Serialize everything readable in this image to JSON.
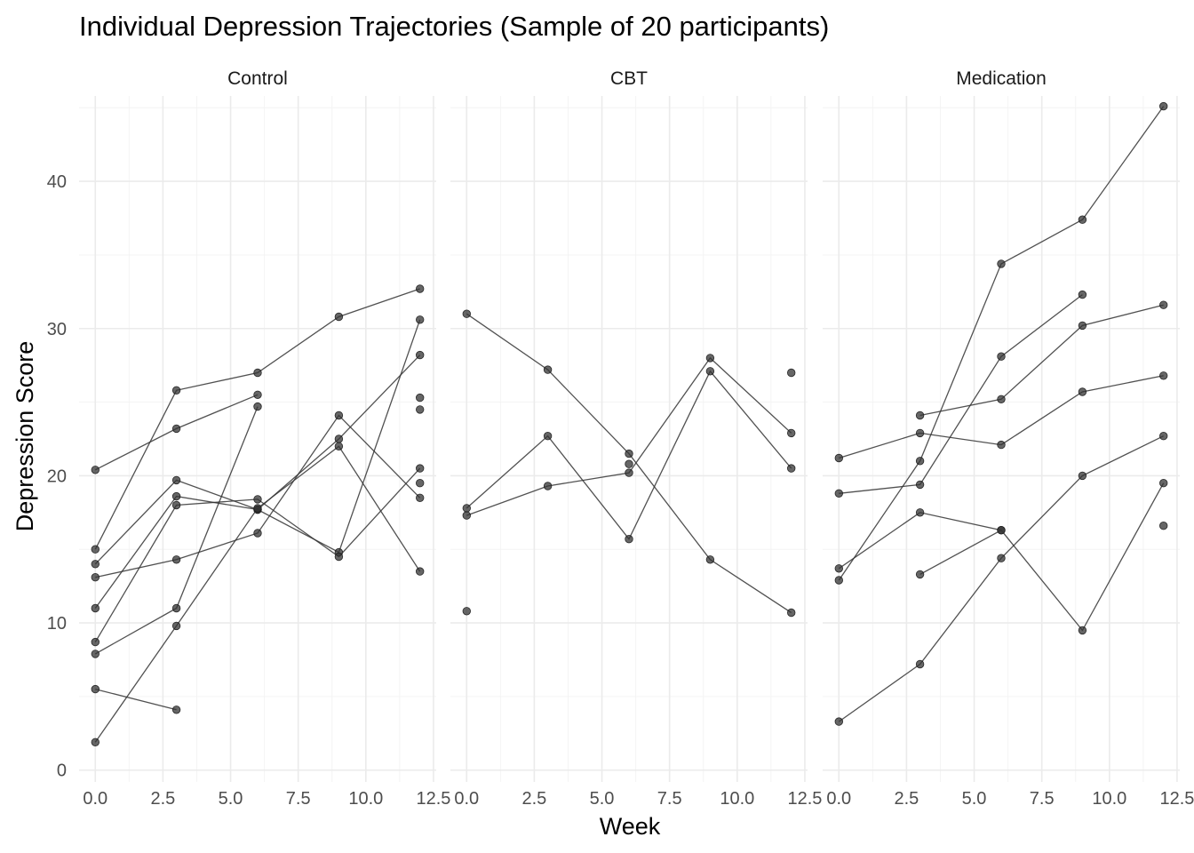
{
  "chart_data": {
    "type": "line",
    "title": "Individual Depression Trajectories (Sample of 20 participants)",
    "xlabel": "Week",
    "ylabel": "Depression Score",
    "xlim": [
      -0.6,
      12.6
    ],
    "ylim": [
      -0.8,
      45.8
    ],
    "x_ticks": [
      0,
      2.5,
      5,
      7.5,
      10,
      12.5
    ],
    "x_tick_labels": [
      "0.0",
      "2.5",
      "5.0",
      "7.5",
      "10.0",
      "12.5"
    ],
    "y_ticks": [
      0,
      10,
      20,
      30,
      40
    ],
    "y_tick_labels": [
      "0",
      "10",
      "20",
      "30",
      "40"
    ],
    "grid": true,
    "legend": "none",
    "line_color": "#333333",
    "facets": [
      {
        "name": "Control",
        "series": [
          {
            "x": [
              0,
              3,
              6,
              9,
              12
            ],
            "y": [
              20.4,
              23.2,
              25.5,
              null,
              null
            ]
          },
          {
            "x": [
              0,
              3,
              6,
              9,
              12
            ],
            "y": [
              15.0,
              25.8,
              27.0,
              30.8,
              32.7
            ]
          },
          {
            "x": [
              0,
              3,
              6,
              9,
              12
            ],
            "y": [
              14.0,
              19.7,
              17.7,
              22.5,
              28.2
            ]
          },
          {
            "x": [
              0,
              3,
              6,
              9,
              12
            ],
            "y": [
              13.1,
              14.3,
              16.1,
              24.1,
              18.5
            ]
          },
          {
            "x": [
              0,
              3,
              6,
              9,
              12
            ],
            "y": [
              11.0,
              18.6,
              17.7,
              14.8,
              30.6
            ]
          },
          {
            "x": [
              0,
              3,
              6,
              9,
              12
            ],
            "y": [
              8.7,
              18.0,
              18.4,
              14.5,
              20.5
            ]
          },
          {
            "x": [
              0,
              3,
              6,
              9,
              12
            ],
            "y": [
              7.9,
              11.0,
              24.7,
              null,
              25.3
            ]
          },
          {
            "x": [
              0,
              3,
              6,
              9,
              12
            ],
            "y": [
              5.5,
              4.1,
              null,
              null,
              null
            ]
          },
          {
            "x": [
              0,
              3,
              6,
              9,
              12
            ],
            "y": [
              1.9,
              9.8,
              17.8,
              22.0,
              13.5
            ]
          },
          {
            "x": [
              12
            ],
            "y": [
              24.5
            ]
          },
          {
            "x": [
              12
            ],
            "y": [
              19.5
            ]
          }
        ]
      },
      {
        "name": "CBT",
        "series": [
          {
            "x": [
              0,
              3,
              6,
              9,
              12
            ],
            "y": [
              31.0,
              27.2,
              21.5,
              14.3,
              10.7
            ]
          },
          {
            "x": [
              0,
              3,
              6,
              9,
              12
            ],
            "y": [
              17.8,
              22.7,
              15.7,
              27.1,
              20.5
            ]
          },
          {
            "x": [
              0,
              3,
              6,
              9,
              12
            ],
            "y": [
              17.3,
              19.3,
              20.2,
              28.0,
              22.9
            ]
          },
          {
            "x": [
              0
            ],
            "y": [
              10.8
            ]
          },
          {
            "x": [
              6
            ],
            "y": [
              20.8
            ]
          },
          {
            "x": [
              12
            ],
            "y": [
              27.0
            ]
          }
        ]
      },
      {
        "name": "Medication",
        "series": [
          {
            "x": [
              0,
              3,
              6,
              9,
              12
            ],
            "y": [
              21.2,
              22.9,
              22.1,
              25.7,
              26.8
            ]
          },
          {
            "x": [
              0,
              3,
              6,
              9,
              12
            ],
            "y": [
              18.8,
              19.4,
              28.1,
              32.3,
              null
            ]
          },
          {
            "x": [
              0,
              3,
              6,
              9,
              12
            ],
            "y": [
              13.7,
              17.5,
              16.3,
              9.5,
              19.5
            ]
          },
          {
            "x": [
              0,
              3,
              6,
              9,
              12
            ],
            "y": [
              12.9,
              21.0,
              34.4,
              37.4,
              45.1
            ]
          },
          {
            "x": [
              0,
              3,
              6,
              9,
              12
            ],
            "y": [
              3.3,
              7.2,
              14.4,
              20.0,
              22.7
            ]
          },
          {
            "x": [
              3,
              6,
              9,
              12
            ],
            "y": [
              24.1,
              25.2,
              30.2,
              31.6
            ]
          },
          {
            "x": [
              3,
              6
            ],
            "y": [
              13.3,
              16.3
            ]
          },
          {
            "x": [
              12
            ],
            "y": [
              16.6
            ]
          }
        ]
      }
    ]
  }
}
